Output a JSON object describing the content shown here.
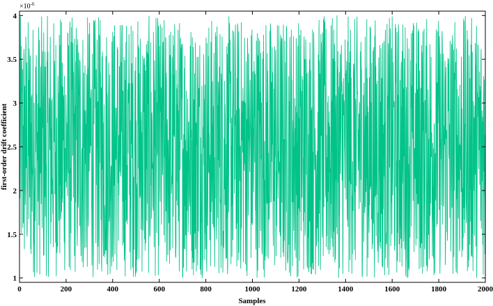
{
  "chart_data": {
    "type": "line",
    "xlabel": "Samples",
    "ylabel": "first-order drift coefficient",
    "y_exponent_label": "×10",
    "y_exponent_power": "-6",
    "xlim": [
      0,
      2000
    ],
    "ylim": [
      0.95,
      4.05
    ],
    "x_ticks": [
      "0",
      "200",
      "400",
      "600",
      "800",
      "1000",
      "1200",
      "1400",
      "1600",
      "1800",
      "2000"
    ],
    "y_ticks": [
      "1",
      "1.5",
      "2",
      "2.5",
      "3",
      "3.5",
      "4"
    ],
    "series": [
      {
        "color": "#00c389",
        "x_start": 1,
        "x_end": 2000,
        "count": 2000,
        "distribution": "uniform",
        "y_min": 1,
        "y_max": 4
      }
    ],
    "grid": false,
    "legend": "none"
  }
}
